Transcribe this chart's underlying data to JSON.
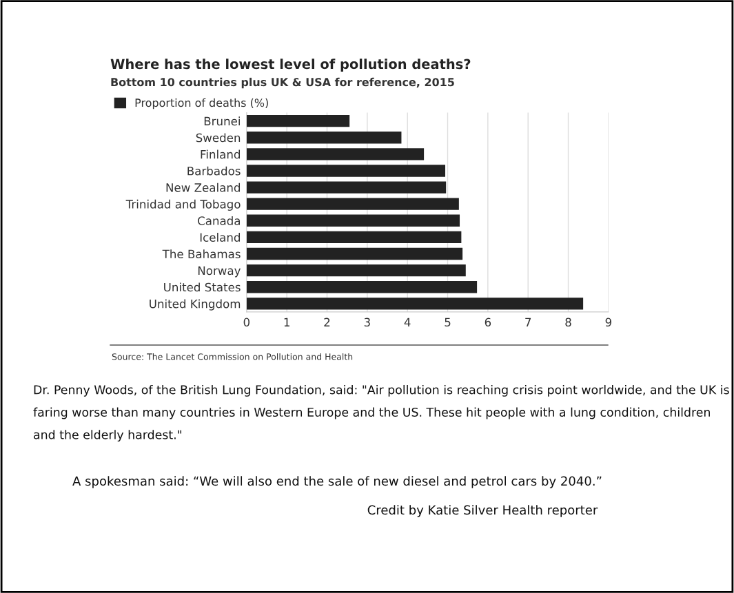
{
  "chart_data": {
    "type": "bar",
    "orientation": "horizontal",
    "title": "Where has the lowest level of pollution deaths?",
    "subtitle": "Bottom 10 countries plus UK & USA for reference, 2015",
    "categories": [
      "Brunei",
      "Sweden",
      "Finland",
      "Barbados",
      "New Zealand",
      "Trinidad and Tobago",
      "Canada",
      "Iceland",
      "The Bahamas",
      "Norway",
      "United States",
      "United Kingdom"
    ],
    "series": [
      {
        "name": "Proportion of deaths (%)",
        "color": "#222222",
        "values": [
          2.56,
          3.85,
          4.41,
          4.94,
          4.96,
          5.28,
          5.3,
          5.34,
          5.37,
          5.45,
          5.73,
          8.37
        ]
      }
    ],
    "xlim": [
      0,
      9
    ],
    "xticks": [
      0,
      1,
      2,
      3,
      4,
      5,
      6,
      7,
      8,
      9
    ],
    "grid": "x",
    "legend": "top left",
    "annotations": [
      "Source: The Lancet Commission on Pollution and Health",
      "Dr. Penny Woods, of the British Lung Foundation, said: \"Air pollution is reaching crisis point worldwide, and the UK is faring worse than many countries in Western Europe and the US. These hit people with a lung condition, children and the elderly hardest.\"",
      "A spokesman said: “We will also end the sale of new diesel and petrol cars by 2040.”",
      "Credit by Katie Silver Health reporter"
    ]
  }
}
